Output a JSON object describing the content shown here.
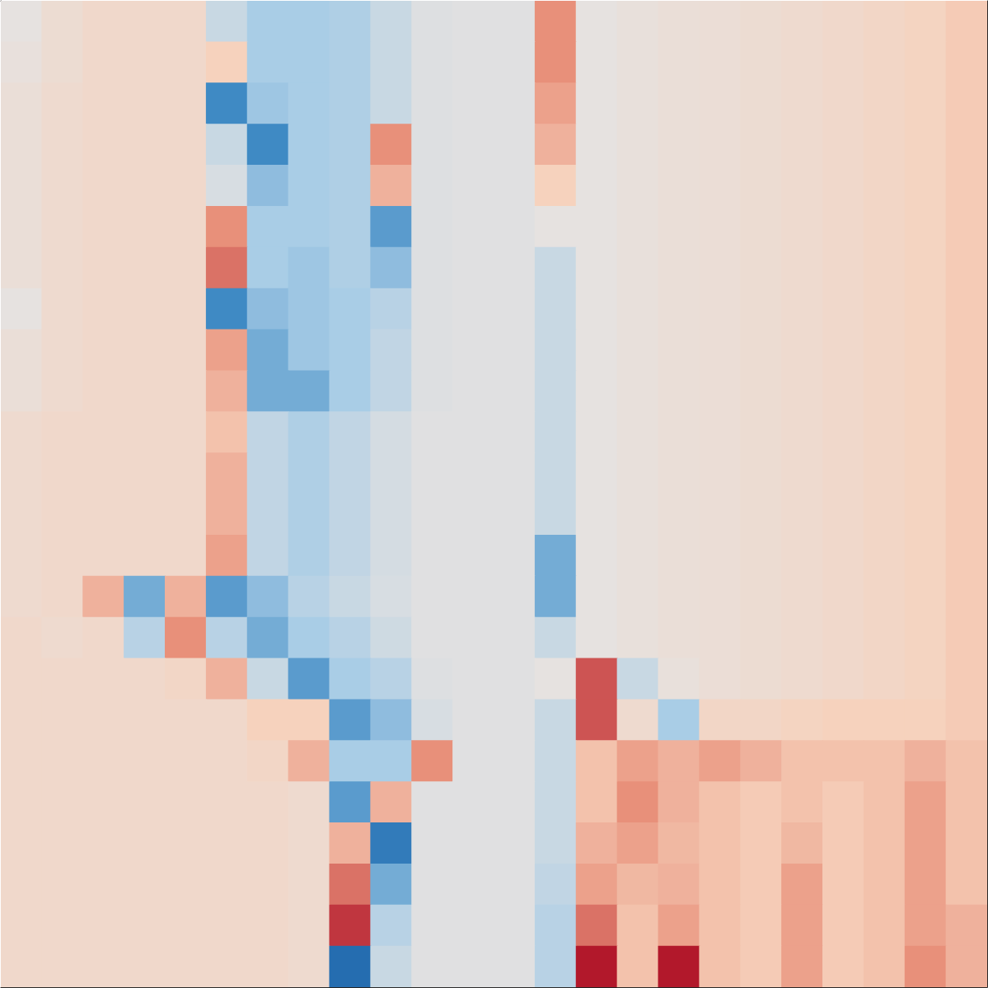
{
  "chart_data": {
    "type": "heatmap",
    "xlim": [
      0,
      8
    ],
    "ylim": [
      0,
      8
    ],
    "xticks": [
      0,
      1,
      2,
      3,
      4,
      5,
      6,
      7,
      8
    ],
    "yticks": [
      0,
      1,
      2,
      3,
      4,
      5,
      6,
      7,
      8
    ],
    "tick_labels": false,
    "color_range": [
      -0.6,
      0.6
    ],
    "cells": [
      [
        0.0,
        0.08,
        0.12,
        0.12,
        0.12,
        -0.1,
        -0.2,
        -0.2,
        -0.18,
        -0.1,
        -0.03,
        -0.02,
        -0.02,
        0.4,
        0.0,
        0.03,
        0.05,
        0.06,
        0.08,
        0.1,
        0.12,
        0.15,
        0.18,
        0.22
      ],
      [
        0.02,
        0.08,
        0.12,
        0.12,
        0.12,
        0.2,
        -0.2,
        -0.2,
        -0.18,
        -0.1,
        -0.03,
        -0.02,
        -0.02,
        0.4,
        0.0,
        0.03,
        0.05,
        0.06,
        0.08,
        0.1,
        0.12,
        0.15,
        0.18,
        0.22
      ],
      [
        0.05,
        0.1,
        0.12,
        0.12,
        0.12,
        -0.4,
        -0.22,
        -0.2,
        -0.18,
        -0.1,
        -0.03,
        -0.02,
        -0.02,
        0.35,
        0.0,
        0.03,
        0.05,
        0.06,
        0.08,
        0.1,
        0.12,
        0.15,
        0.18,
        0.22
      ],
      [
        0.05,
        0.1,
        0.12,
        0.12,
        0.12,
        -0.1,
        -0.4,
        -0.2,
        -0.18,
        0.4,
        -0.03,
        -0.02,
        -0.02,
        0.3,
        0.0,
        0.03,
        0.05,
        0.06,
        0.08,
        0.1,
        0.12,
        0.15,
        0.18,
        0.22
      ],
      [
        0.05,
        0.1,
        0.12,
        0.12,
        0.12,
        -0.05,
        -0.25,
        -0.2,
        -0.18,
        0.3,
        -0.03,
        -0.02,
        -0.02,
        0.2,
        0.0,
        0.03,
        0.05,
        0.06,
        0.08,
        0.1,
        0.12,
        0.15,
        0.18,
        0.22
      ],
      [
        0.05,
        0.1,
        0.12,
        0.12,
        0.12,
        0.4,
        -0.2,
        -0.2,
        -0.18,
        -0.35,
        -0.03,
        -0.02,
        -0.02,
        0.0,
        0.0,
        0.03,
        0.05,
        0.06,
        0.08,
        0.1,
        0.12,
        0.15,
        0.18,
        0.22
      ],
      [
        0.05,
        0.1,
        0.12,
        0.12,
        0.12,
        0.45,
        -0.2,
        -0.22,
        -0.18,
        -0.25,
        -0.03,
        -0.02,
        -0.02,
        -0.1,
        0.0,
        0.03,
        0.05,
        0.06,
        0.08,
        0.1,
        0.12,
        0.15,
        0.18,
        0.22
      ],
      [
        0.0,
        0.1,
        0.12,
        0.12,
        0.12,
        -0.4,
        -0.25,
        -0.22,
        -0.2,
        -0.15,
        -0.03,
        -0.02,
        -0.02,
        -0.1,
        0.0,
        0.03,
        0.05,
        0.06,
        0.08,
        0.1,
        0.12,
        0.15,
        0.18,
        0.22
      ],
      [
        0.05,
        0.1,
        0.12,
        0.12,
        0.12,
        0.35,
        -0.3,
        -0.22,
        -0.2,
        -0.12,
        -0.03,
        -0.02,
        -0.02,
        -0.1,
        0.0,
        0.03,
        0.05,
        0.06,
        0.08,
        0.1,
        0.12,
        0.15,
        0.18,
        0.22
      ],
      [
        0.05,
        0.1,
        0.12,
        0.12,
        0.12,
        0.3,
        -0.3,
        -0.3,
        -0.2,
        -0.12,
        -0.03,
        -0.02,
        -0.02,
        -0.1,
        0.0,
        0.03,
        0.05,
        0.06,
        0.08,
        0.1,
        0.12,
        0.15,
        0.18,
        0.22
      ],
      [
        0.1,
        0.12,
        0.12,
        0.12,
        0.12,
        0.25,
        -0.12,
        -0.18,
        -0.12,
        -0.06,
        -0.02,
        -0.02,
        -0.02,
        -0.1,
        0.0,
        0.03,
        0.05,
        0.06,
        0.08,
        0.1,
        0.12,
        0.15,
        0.18,
        0.22
      ],
      [
        0.1,
        0.12,
        0.12,
        0.12,
        0.12,
        0.3,
        -0.12,
        -0.18,
        -0.12,
        -0.06,
        -0.02,
        -0.02,
        -0.02,
        -0.1,
        0.0,
        0.03,
        0.05,
        0.06,
        0.08,
        0.1,
        0.12,
        0.15,
        0.18,
        0.22
      ],
      [
        0.1,
        0.12,
        0.12,
        0.12,
        0.12,
        0.3,
        -0.12,
        -0.18,
        -0.12,
        -0.06,
        -0.02,
        -0.02,
        -0.02,
        -0.1,
        0.0,
        0.03,
        0.05,
        0.06,
        0.08,
        0.1,
        0.12,
        0.15,
        0.18,
        0.22
      ],
      [
        0.1,
        0.12,
        0.12,
        0.12,
        0.12,
        0.35,
        -0.12,
        -0.18,
        -0.12,
        -0.06,
        -0.02,
        -0.02,
        -0.02,
        -0.3,
        0.0,
        0.03,
        0.05,
        0.06,
        0.08,
        0.1,
        0.12,
        0.15,
        0.18,
        0.22
      ],
      [
        0.1,
        0.12,
        0.3,
        -0.3,
        0.3,
        -0.35,
        -0.25,
        -0.15,
        -0.1,
        -0.05,
        -0.02,
        -0.02,
        -0.02,
        -0.3,
        0.0,
        0.03,
        0.05,
        0.06,
        0.08,
        0.1,
        0.12,
        0.15,
        0.18,
        0.22
      ],
      [
        0.12,
        0.1,
        0.12,
        -0.15,
        0.4,
        -0.15,
        -0.3,
        -0.2,
        -0.15,
        -0.08,
        -0.02,
        -0.02,
        -0.02,
        -0.1,
        0.0,
        0.03,
        0.05,
        0.06,
        0.08,
        0.1,
        0.12,
        0.15,
        0.18,
        0.22
      ],
      [
        0.12,
        0.12,
        0.12,
        0.12,
        0.15,
        0.3,
        -0.1,
        -0.35,
        -0.2,
        -0.15,
        -0.03,
        -0.02,
        -0.02,
        0.0,
        0.5,
        -0.1,
        0.03,
        0.06,
        0.08,
        0.1,
        0.12,
        0.15,
        0.18,
        0.22
      ],
      [
        0.12,
        0.12,
        0.12,
        0.12,
        0.12,
        0.12,
        0.2,
        0.2,
        -0.35,
        -0.25,
        -0.05,
        -0.02,
        -0.02,
        -0.1,
        0.5,
        0.1,
        -0.2,
        0.15,
        0.15,
        0.18,
        0.2,
        0.2,
        0.2,
        0.22
      ],
      [
        0.12,
        0.12,
        0.12,
        0.12,
        0.12,
        0.12,
        0.15,
        0.3,
        -0.2,
        -0.2,
        0.4,
        -0.02,
        -0.02,
        -0.1,
        0.25,
        0.35,
        0.3,
        0.35,
        0.3,
        0.25,
        0.25,
        0.25,
        0.3,
        0.25
      ],
      [
        0.12,
        0.12,
        0.12,
        0.12,
        0.12,
        0.12,
        0.12,
        0.1,
        -0.35,
        0.3,
        -0.02,
        -0.02,
        -0.02,
        -0.1,
        0.25,
        0.4,
        0.3,
        0.25,
        0.22,
        0.25,
        0.22,
        0.25,
        0.35,
        0.25
      ],
      [
        0.12,
        0.12,
        0.12,
        0.12,
        0.12,
        0.12,
        0.12,
        0.1,
        0.3,
        -0.45,
        -0.02,
        -0.02,
        -0.02,
        -0.1,
        0.3,
        0.35,
        0.28,
        0.25,
        0.22,
        0.28,
        0.22,
        0.25,
        0.35,
        0.25
      ],
      [
        0.12,
        0.12,
        0.12,
        0.12,
        0.12,
        0.12,
        0.12,
        0.1,
        0.45,
        -0.3,
        -0.02,
        -0.02,
        -0.02,
        -0.12,
        0.35,
        0.28,
        0.3,
        0.25,
        0.22,
        0.35,
        0.22,
        0.25,
        0.35,
        0.25
      ],
      [
        0.12,
        0.12,
        0.12,
        0.12,
        0.12,
        0.12,
        0.12,
        0.1,
        0.55,
        -0.15,
        -0.02,
        -0.02,
        -0.02,
        -0.15,
        0.45,
        0.25,
        0.35,
        0.25,
        0.22,
        0.35,
        0.22,
        0.25,
        0.35,
        0.3
      ],
      [
        0.12,
        0.12,
        0.12,
        0.12,
        0.12,
        0.12,
        0.12,
        0.1,
        -0.5,
        -0.1,
        -0.02,
        -0.02,
        -0.02,
        -0.15,
        0.6,
        0.25,
        0.6,
        0.25,
        0.22,
        0.35,
        0.22,
        0.25,
        0.4,
        0.3
      ]
    ]
  }
}
